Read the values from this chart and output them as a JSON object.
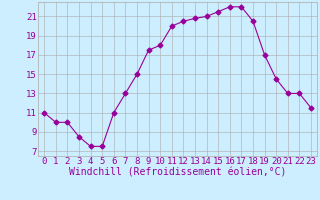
{
  "x": [
    0,
    1,
    2,
    3,
    4,
    5,
    6,
    7,
    8,
    9,
    10,
    11,
    12,
    13,
    14,
    15,
    16,
    17,
    18,
    19,
    20,
    21,
    22,
    23
  ],
  "y": [
    11,
    10,
    10,
    8.5,
    7.5,
    7.5,
    11,
    13,
    15,
    17.5,
    18,
    20,
    20.5,
    20.8,
    21,
    21.5,
    22,
    22,
    20.5,
    17,
    14.5,
    13,
    13,
    11.5
  ],
  "line_color": "#990099",
  "marker": "D",
  "marker_size": 2.5,
  "bg_color": "#cceeff",
  "grid_color": "#aaaaaa",
  "xlabel": "Windchill (Refroidissement éolien,°C)",
  "xlabel_fontsize": 7,
  "yticks": [
    7,
    9,
    11,
    13,
    15,
    17,
    19,
    21
  ],
  "xticks": [
    0,
    1,
    2,
    3,
    4,
    5,
    6,
    7,
    8,
    9,
    10,
    11,
    12,
    13,
    14,
    15,
    16,
    17,
    18,
    19,
    20,
    21,
    22,
    23
  ],
  "xlim": [
    -0.5,
    23.5
  ],
  "ylim": [
    6.5,
    22.5
  ],
  "tick_fontsize": 6.5,
  "tick_color": "#990099",
  "label_color": "#990099"
}
